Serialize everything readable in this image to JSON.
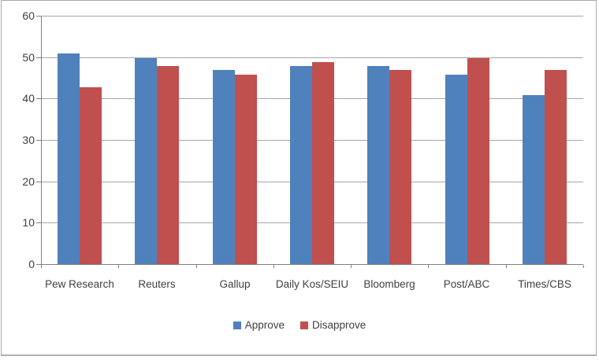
{
  "frame": {
    "background": "#ffffff",
    "border_color": "#ababab"
  },
  "chart_data": {
    "type": "bar",
    "title": "",
    "xlabel": "",
    "ylabel": "",
    "categories": [
      "Pew Research",
      "Reuters",
      "Gallup",
      "Daily Kos/SEIU",
      "Bloomberg",
      "Post/ABC",
      "Times/CBS"
    ],
    "series": [
      {
        "name": "Approve",
        "color": "#4F81BD",
        "values": [
          51,
          50,
          47,
          48,
          48,
          46,
          41
        ]
      },
      {
        "name": "Disapprove",
        "color": "#C0504D",
        "values": [
          43,
          48,
          46,
          49,
          47,
          50,
          47
        ]
      }
    ],
    "ylim": [
      0,
      60
    ],
    "yticks": [
      0,
      10,
      20,
      30,
      40,
      50,
      60
    ],
    "grid": true,
    "gridline_color": "#A6A6A6",
    "axis_color": "#808080",
    "text_color": "#404040",
    "legend_position": "bottom"
  }
}
